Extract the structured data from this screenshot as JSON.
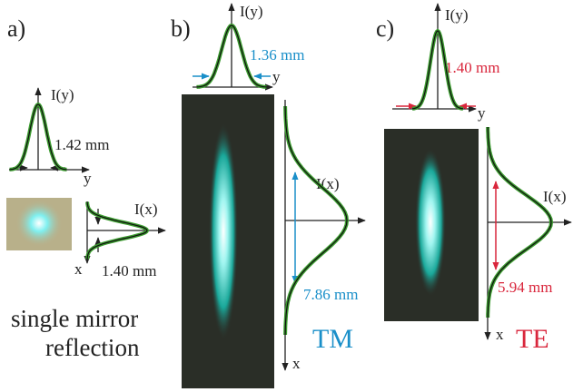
{
  "panels": [
    {
      "label": "a)",
      "profile_y": {
        "axis_label": "I(y)",
        "coord": "y",
        "width": "1.42 mm"
      },
      "profile_x": {
        "axis_label": "I(x)",
        "coord": "x",
        "width": "1.40 mm"
      },
      "caption": [
        "single mirror",
        "reflection"
      ]
    },
    {
      "label": "b)",
      "profile_y": {
        "axis_label": "I(y)",
        "coord": "y",
        "width": "1.36 mm"
      },
      "profile_x": {
        "axis_label": "I(x)",
        "coord": "x",
        "width": "7.86 mm"
      },
      "polarization": "TM"
    },
    {
      "label": "c)",
      "profile_y": {
        "axis_label": "I(y)",
        "coord": "y",
        "width": "1.40 mm"
      },
      "profile_x": {
        "axis_label": "I(x)",
        "coord": "x",
        "width": "5.94 mm"
      },
      "polarization": "TE"
    }
  ]
}
